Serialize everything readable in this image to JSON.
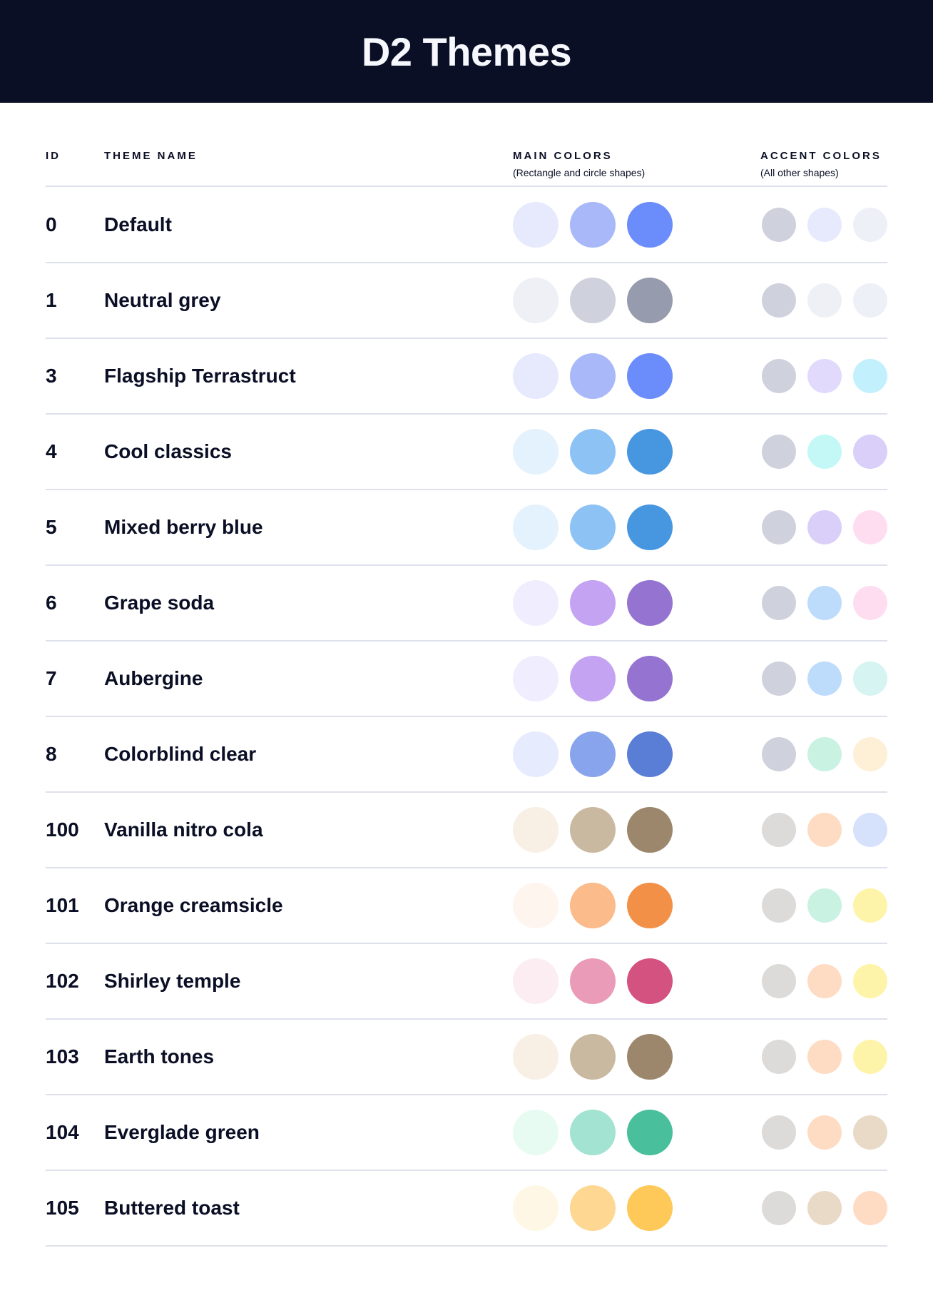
{
  "title": "D2 Themes",
  "columns": {
    "id": "ID",
    "name": "THEME NAME",
    "main": "MAIN COLORS",
    "main_sub": "(Rectangle and circle shapes)",
    "accent": "ACCENT COLORS",
    "accent_sub": "(All other shapes)"
  },
  "themes": [
    {
      "id": "0",
      "name": "Default",
      "main": [
        "#E7E9FD",
        "#A8B8F8",
        "#6B8DFC"
      ],
      "accent": [
        "#CFD1DD",
        "#E7E9FD",
        "#EEF0F8"
      ]
    },
    {
      "id": "1",
      "name": "Neutral grey",
      "main": [
        "#EEF0F6",
        "#CFD1DD",
        "#969CAD"
      ],
      "accent": [
        "#CFD1DD",
        "#EEF0F6",
        "#EEF0F8"
      ]
    },
    {
      "id": "3",
      "name": "Flagship Terrastruct",
      "main": [
        "#E7E9FD",
        "#A8B8F8",
        "#6B8DFC"
      ],
      "accent": [
        "#CFD1DD",
        "#E2DAFD",
        "#C2F0FC"
      ]
    },
    {
      "id": "4",
      "name": "Cool classics",
      "main": [
        "#E3F2FD",
        "#8DC2F4",
        "#4796E0"
      ],
      "accent": [
        "#CFD1DD",
        "#C3F8F6",
        "#D9CFF8"
      ]
    },
    {
      "id": "5",
      "name": "Mixed berry blue",
      "main": [
        "#E3F2FD",
        "#8DC2F4",
        "#4796E0"
      ],
      "accent": [
        "#CFD1DD",
        "#DACFF8",
        "#FEDDF1"
      ]
    },
    {
      "id": "6",
      "name": "Grape soda",
      "main": [
        "#F0EDFE",
        "#C4A3F3",
        "#9473D1"
      ],
      "accent": [
        "#CFD1DD",
        "#BDDCFB",
        "#FEDDF1"
      ]
    },
    {
      "id": "7",
      "name": "Aubergine",
      "main": [
        "#F0EDFE",
        "#C4A3F3",
        "#9473D1"
      ],
      "accent": [
        "#CFD1DD",
        "#BDDCFB",
        "#D5F4F2"
      ]
    },
    {
      "id": "8",
      "name": "Colorblind clear",
      "main": [
        "#E6EBFD",
        "#88A4EC",
        "#5A7DD6"
      ],
      "accent": [
        "#CFD1DD",
        "#C9F2E3",
        "#FEF0D6"
      ]
    },
    {
      "id": "100",
      "name": "Vanilla nitro cola",
      "main": [
        "#F8EFE5",
        "#C9B9A0",
        "#9C876D"
      ],
      "accent": [
        "#DCDBD9",
        "#FEDCC4",
        "#D6E1FC"
      ]
    },
    {
      "id": "101",
      "name": "Orange creamsicle",
      "main": [
        "#FEF5EF",
        "#FBBB8A",
        "#F29047"
      ],
      "accent": [
        "#DCDBD9",
        "#C9F2E3",
        "#FEF4A9"
      ]
    },
    {
      "id": "102",
      "name": "Shirley temple",
      "main": [
        "#FBEDF2",
        "#EA9BB7",
        "#D3527F"
      ],
      "accent": [
        "#DCDBD9",
        "#FEDCC4",
        "#FEF4A9"
      ]
    },
    {
      "id": "103",
      "name": "Earth tones",
      "main": [
        "#F8EFE5",
        "#C9B9A0",
        "#9C876D"
      ],
      "accent": [
        "#DCDBD9",
        "#FEDCC4",
        "#FEF4A9"
      ]
    },
    {
      "id": "104",
      "name": "Everglade green",
      "main": [
        "#E8FBF3",
        "#A3E3D1",
        "#4ABF9B"
      ],
      "accent": [
        "#DCDBD9",
        "#FEDCC4",
        "#E8DAC6"
      ]
    },
    {
      "id": "105",
      "name": "Buttered toast",
      "main": [
        "#FFF7E5",
        "#FED893",
        "#FEC959"
      ],
      "accent": [
        "#DCDBD9",
        "#E8DAC6",
        "#FEDCC4"
      ]
    }
  ]
}
